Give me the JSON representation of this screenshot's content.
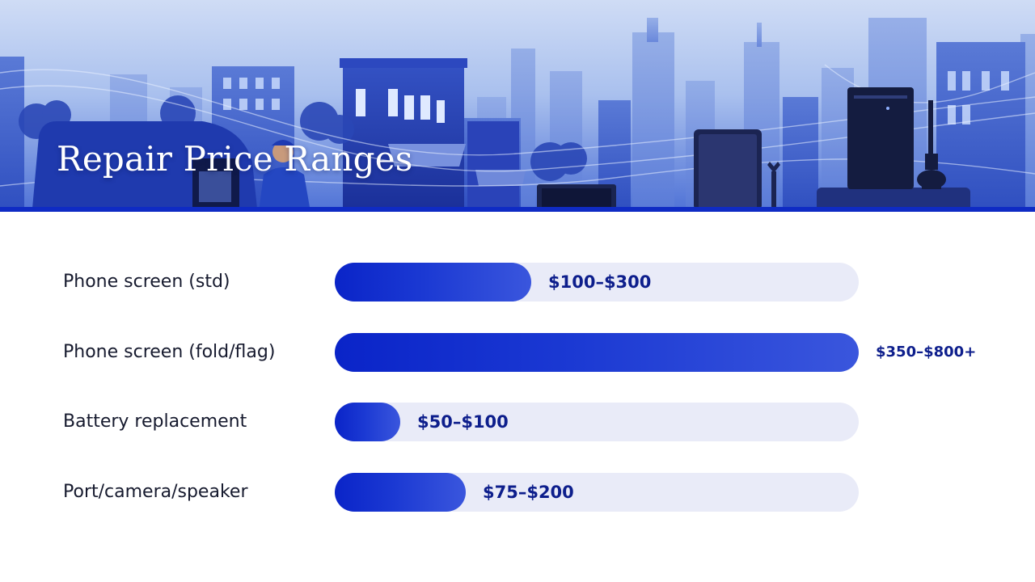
{
  "header": {
    "title": "Repair Price Ranges"
  },
  "colors": {
    "bar_fill_start": "#0a24c8",
    "bar_fill_end": "#3a56dd",
    "track": "#e9ebf8",
    "value_text": "#0d1e8c",
    "banner_rule": "#0f2bc4"
  },
  "banner_icons": [
    "delivery-van-icon",
    "technician-icon",
    "laptop-icon",
    "tablet-icon",
    "wrench-icon",
    "desktop-tower-icon",
    "vacuum-icon",
    "city-skyline-icon"
  ],
  "chart_data": {
    "type": "bar",
    "orientation": "horizontal",
    "title": "Repair Price Ranges",
    "categories": [
      "Phone screen (std)",
      "Phone screen (fold/flag)",
      "Battery replacement",
      "Port/camera/speaker"
    ],
    "values": [
      300,
      800,
      100,
      200
    ],
    "value_labels": [
      "$100–$300",
      "$350–$800+",
      "$50–$100",
      "$75–$200"
    ],
    "ranges": [
      [
        100,
        300
      ],
      [
        350,
        800
      ],
      [
        50,
        100
      ],
      [
        75,
        200
      ]
    ],
    "xlim": [
      0,
      800
    ],
    "xlabel": "",
    "ylabel": "",
    "grid": false,
    "legend": "none"
  }
}
